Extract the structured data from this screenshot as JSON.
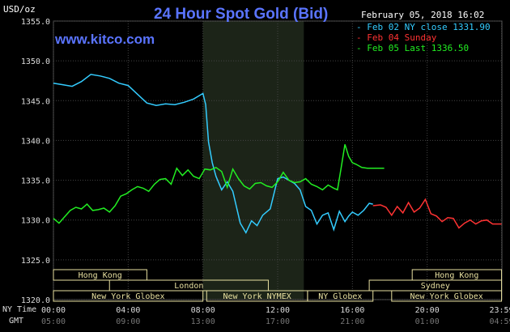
{
  "header": {
    "title": "24 Hour Spot Gold (Bid)",
    "site": "www.kitco.com",
    "unit": "USD/oz",
    "date": "February 05, 2018 16:02"
  },
  "legend": [
    {
      "label": "- Feb 02 NY close 1331.90",
      "color": "#33ccff"
    },
    {
      "label": "- Feb 04 Sunday",
      "color": "#ff3333"
    },
    {
      "label": "- Feb 05 Last 1336.50",
      "color": "#22ee22"
    }
  ],
  "axis_labels": {
    "ny_time": "NY Time",
    "gmt": "GMT"
  },
  "chart_data": {
    "type": "line",
    "title": "24 Hour Spot Gold (Bid)",
    "ylabel": "USD/oz",
    "ylim": [
      1320.0,
      1355.0
    ],
    "yticks": [
      "1355.0",
      "1350.0",
      "1345.0",
      "1340.0",
      "1335.0",
      "1330.0",
      "1325.0",
      "1320.0"
    ],
    "xlim": [
      0,
      24
    ],
    "xticks_ny": [
      "00:00",
      "04:00",
      "08:00",
      "12:00",
      "16:00",
      "20:00",
      "23:59"
    ],
    "xticks_gmt": [
      "05:00",
      "09:00",
      "13:00",
      "17:00",
      "21:00",
      "01:00",
      "04:59"
    ],
    "grid": true,
    "highlight_hours": [
      8.0,
      13.4
    ],
    "series": [
      {
        "name": "Feb 02 NY close 1331.90",
        "color": "#33ccff",
        "x": [
          0.0,
          0.5,
          1.0,
          1.5,
          2.0,
          2.5,
          3.0,
          3.5,
          4.0,
          4.5,
          5.0,
          5.5,
          6.0,
          6.5,
          7.0,
          7.5,
          8.0,
          8.15,
          8.3,
          8.5,
          8.7,
          9.0,
          9.3,
          9.6,
          10.0,
          10.3,
          10.6,
          10.9,
          11.2,
          11.6,
          12.0,
          12.3,
          12.6,
          12.9,
          13.2,
          13.5,
          13.8,
          14.1,
          14.4,
          14.7,
          15.0,
          15.3,
          15.6,
          15.8,
          16.0,
          16.3,
          16.6,
          16.9,
          17.1
        ],
        "y": [
          1347.2,
          1347.0,
          1346.8,
          1347.4,
          1348.3,
          1348.1,
          1347.8,
          1347.2,
          1346.9,
          1345.8,
          1344.7,
          1344.4,
          1344.6,
          1344.5,
          1344.8,
          1345.2,
          1345.9,
          1344.5,
          1339.8,
          1337.2,
          1335.5,
          1333.8,
          1334.8,
          1333.6,
          1329.6,
          1328.4,
          1329.9,
          1329.3,
          1330.6,
          1331.4,
          1335.2,
          1335.4,
          1335.0,
          1334.6,
          1333.8,
          1331.7,
          1331.2,
          1329.5,
          1330.6,
          1330.9,
          1328.8,
          1331.1,
          1329.8,
          1330.5,
          1331.0,
          1330.6,
          1331.2,
          1332.1,
          1332.0
        ]
      },
      {
        "name": "Feb 04 Sunday",
        "color": "#ff3333",
        "x": [
          17.1,
          17.5,
          17.8,
          18.1,
          18.4,
          18.7,
          19.0,
          19.3,
          19.6,
          19.9,
          20.2,
          20.5,
          20.8,
          21.1,
          21.4,
          21.7,
          22.0,
          22.3,
          22.6,
          22.9,
          23.2,
          23.5,
          23.98
        ],
        "y": [
          1331.8,
          1331.9,
          1331.6,
          1330.6,
          1331.7,
          1330.9,
          1332.2,
          1331.0,
          1331.5,
          1332.6,
          1330.8,
          1330.5,
          1329.8,
          1330.3,
          1330.2,
          1329.0,
          1329.6,
          1330.0,
          1329.5,
          1329.9,
          1330.0,
          1329.5,
          1329.5
        ]
      },
      {
        "name": "Feb 05 Last 1336.50",
        "color": "#22ee22",
        "x": [
          0.0,
          0.3,
          0.6,
          0.9,
          1.2,
          1.5,
          1.8,
          2.1,
          2.4,
          2.7,
          3.0,
          3.3,
          3.6,
          3.9,
          4.2,
          4.5,
          4.8,
          5.1,
          5.4,
          5.7,
          6.0,
          6.3,
          6.6,
          6.9,
          7.2,
          7.5,
          7.8,
          8.1,
          8.4,
          8.7,
          9.0,
          9.3,
          9.6,
          9.9,
          10.2,
          10.5,
          10.8,
          11.1,
          11.4,
          11.7,
          12.0,
          12.3,
          12.6,
          12.9,
          13.2,
          13.5,
          13.8,
          14.1,
          14.4,
          14.7,
          15.0,
          15.2,
          15.4,
          15.6,
          15.8,
          16.0,
          16.2,
          16.5,
          16.8,
          17.1,
          17.4,
          17.7
        ],
        "y": [
          1330.2,
          1329.6,
          1330.4,
          1331.2,
          1331.6,
          1331.4,
          1332.0,
          1331.2,
          1331.3,
          1331.5,
          1331.0,
          1331.8,
          1333.0,
          1333.3,
          1333.8,
          1334.2,
          1334.0,
          1333.6,
          1334.5,
          1335.1,
          1335.2,
          1334.5,
          1336.5,
          1335.6,
          1336.3,
          1335.5,
          1335.2,
          1336.4,
          1336.3,
          1336.6,
          1336.1,
          1334.1,
          1336.4,
          1335.2,
          1334.3,
          1333.9,
          1334.6,
          1334.7,
          1334.3,
          1334.1,
          1334.8,
          1336.0,
          1335.0,
          1334.7,
          1334.8,
          1335.2,
          1334.5,
          1334.2,
          1333.8,
          1334.4,
          1334.0,
          1333.8,
          1336.6,
          1339.5,
          1338.0,
          1337.2,
          1337.0,
          1336.6,
          1336.5,
          1336.5,
          1336.5,
          1336.5
        ]
      }
    ]
  },
  "markets": [
    {
      "name": "Hong Kong",
      "start": 0.0,
      "end": 5.0,
      "row": 0
    },
    {
      "name": "London",
      "start": 3.0,
      "end": 11.5,
      "row": 1
    },
    {
      "name": "New York Globex",
      "start": 0.0,
      "end": 8.0,
      "row": 2
    },
    {
      "name": "New York NYMEX",
      "start": 8.2,
      "end": 13.6,
      "row": 2
    },
    {
      "name": "NY Globex",
      "start": 13.6,
      "end": 17.1,
      "row": 2
    },
    {
      "name": "Hong Kong",
      "start": 19.2,
      "end": 23.98,
      "row": 0
    },
    {
      "name": "Sydney",
      "start": 16.9,
      "end": 23.98,
      "row": 1
    },
    {
      "name": "New York Globex",
      "start": 18.1,
      "end": 23.98,
      "row": 2
    }
  ]
}
